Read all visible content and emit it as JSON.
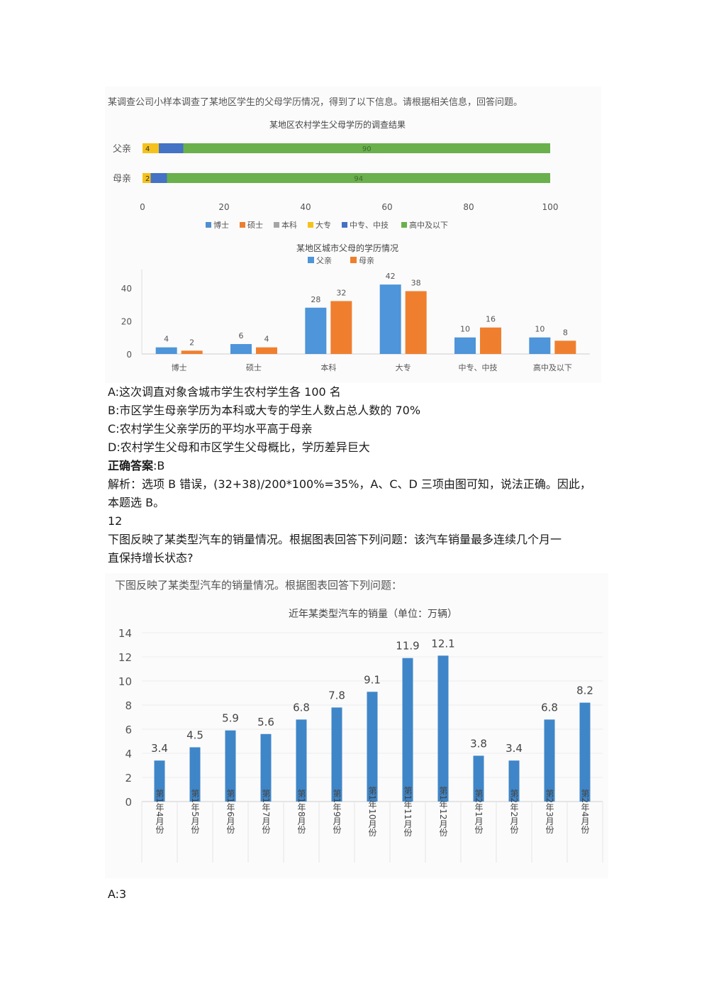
{
  "figure1": {
    "intro": "某调查公司小样本调查了某地区学生的父母学历情况，得到了以下信息。请根据相关信息，回答问题。",
    "chart_data": [
      {
        "type": "bar",
        "orientation": "horizontal-stacked",
        "title": "某地区农村学生父母学历的调查结果",
        "categories": [
          "父亲",
          "母亲"
        ],
        "series": [
          {
            "name": "博士",
            "values": [
              0,
              0
            ]
          },
          {
            "name": "硕士",
            "values": [
              0,
              0
            ]
          },
          {
            "name": "本科",
            "values": [
              0,
              0
            ]
          },
          {
            "name": "大专",
            "values": [
              4,
              2
            ]
          },
          {
            "name": "中专、中技",
            "values": [
              6,
              4
            ]
          },
          {
            "name": "高中及以下",
            "values": [
              90,
              94
            ]
          }
        ],
        "data_labels": [
          [
            "4",
            "",
            "90"
          ],
          [
            "2",
            "",
            "94"
          ]
        ],
        "xlim": [
          0,
          100
        ],
        "xticks": [
          "0",
          "20",
          "40",
          "60",
          "80",
          "100"
        ],
        "legend_position": "bottom",
        "colors": {
          "博士": "#4e8fd0",
          "硕士": "#ed7d31",
          "本科": "#a5a5a5",
          "大专": "#f5c21b",
          "中专、中技": "#4472c4",
          "高中及以下": "#6ab04c"
        }
      },
      {
        "type": "bar",
        "title": "某地区城市父母的学历情况",
        "categories": [
          "博士",
          "硕士",
          "本科",
          "大专",
          "中专、中技",
          "高中及以下"
        ],
        "series": [
          {
            "name": "父亲",
            "values": [
              4,
              6,
              28,
              42,
              10,
              10
            ]
          },
          {
            "name": "母亲",
            "values": [
              2,
              4,
              32,
              38,
              16,
              8
            ]
          }
        ],
        "ylim": [
          0,
          50
        ],
        "yticks": [
          "0",
          "20",
          "40"
        ],
        "legend_position": "top",
        "colors": {
          "父亲": "#4e95d9",
          "母亲": "#ef7f2f"
        }
      }
    ]
  },
  "options": [
    "A:这次调直对象含城市学生农村学生各 100 名",
    "B:市区学生母亲学历为本科或大专的学生人数占总人数的 70%",
    "C:农村学生父亲学历的平均水平高于母亲",
    "D:农村学生父母和市区学生父母概比，学历差异巨大"
  ],
  "answer": {
    "label": "正确答案",
    "value": ":B"
  },
  "analysis": {
    "line1": "解析：选项 B 错误，(32+38)/200*100%=35%，A、C、D 三项由图可知，说法正确。因此，",
    "line2": "本题选 B。"
  },
  "question2": {
    "number": "12",
    "text_line1": "下图反映了某类型汽车的销量情况。根据图表回答下列问题：该汽车销量最多连续几个月一",
    "text_line2": "直保持增长状态?"
  },
  "figure2": {
    "intro": "下图反映了某类型汽车的销量情况。根据图表回答下列问题：",
    "chart_data": {
      "type": "bar",
      "title": "近年某类型汽车的销量（单位：万辆）",
      "categories": [
        "第1年4月份",
        "第1年5月份",
        "第1年6月份",
        "第1年7月份",
        "第1年8月份",
        "第1年9月份",
        "第1年10月份",
        "第1年11月份",
        "第1年12月份",
        "第2年1月份",
        "第2年2月份",
        "第2年3月份",
        "第2年4月份"
      ],
      "values": [
        3.4,
        4.5,
        5.9,
        5.6,
        6.8,
        7.8,
        9.1,
        11.9,
        12.1,
        3.8,
        3.4,
        6.8,
        8.2
      ],
      "ylim": [
        0,
        14
      ],
      "yticks": [
        "0",
        "2",
        "4",
        "6",
        "8",
        "10",
        "12",
        "14"
      ],
      "color": "#3f86c8"
    }
  },
  "option_a2": "A:3"
}
